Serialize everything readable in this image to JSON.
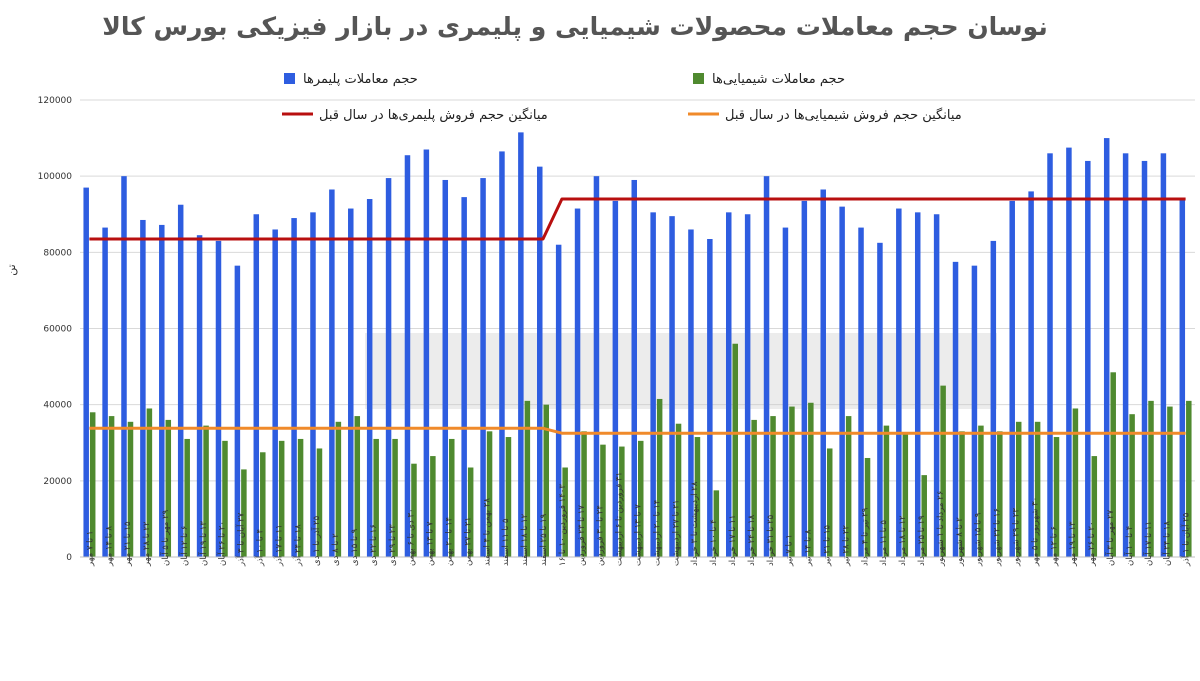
{
  "chart_data": {
    "type": "bar",
    "title": "نوسان حجم معاملات محصولات شیمیایی و پلیمری در بازار فیزیکی بورس کالا",
    "ylabel": "تن",
    "ylim": [
      0,
      120000
    ],
    "yticks": [
      0,
      20000,
      40000,
      60000,
      80000,
      100000,
      120000
    ],
    "grid": true,
    "legend_position": "top",
    "categories": [
      "۱ تا ۷ مهر",
      "۸ تا ۱۴ مهر",
      "۱۵ تا ۲۱ مهر",
      "۲۲ تا ۲۸ مهر",
      "۲۹ مهر تا ۵ آبان",
      "۶ تا ۱۲ آبان",
      "۱۳ تا ۱۹ آبان",
      "۲۰ تا ۲۶ آبان",
      "۲۷ آبان تا ۳ آذر",
      "۴ تا ۱۰ آذر",
      "۱۱ تا ۱۷ آذر",
      "۱۸ تا ۲۴ آذر",
      "۲۵ آذر تا ۱ دی",
      "۲ تا ۸ دی",
      "۹ تا ۱۵ دی",
      "۱۶ تا ۲۲ دی",
      "۲۳ تا ۲۹ دی",
      "۳۰ دی تا ۶ بهمن",
      "۷ تا ۱۳ بهمن",
      "۱۴ تا ۲۰ بهمن",
      "۲۱ تا ۲۷ بهمن",
      "۲۸ بهمن تا ۴ اسفند",
      "۵ تا ۱۱ اسفند",
      "۱۲ تا ۱۸ اسفند",
      "۱۹ تا ۲۵ اسفند",
      "۱۴۰۳ فروردین ۱۰ تا ۱۶",
      "۱۷ تا ۲۳ فروردین",
      "۲۴ تا ۳۰ فروردین",
      "۳۱ فروردین تا ۶ اردیبهشت",
      "۷ تا ۱۳ اردیبهشت",
      "۱۴ تا ۲۰ اردیبهشت",
      "۲۱ تا ۲۷ اردیبهشت",
      "۲۸ اردیبهشت تا ۳ خرداد",
      "۴ تا ۱۰ خرداد",
      "۱۱ تا ۱۷ خرداد",
      "۱۸ تا ۲۴ خرداد",
      "۲۵ تا ۳۱ خرداد",
      "۱ تا ۷ تیر",
      "۸ تا ۱۴ تیر",
      "۱۵ تا ۲۱ تیر",
      "۲۲ تا ۲۸ تیر",
      "۲۹ تیر تا ۴ مرداد",
      "۵ تا ۱۱ مرداد",
      "۱۲ تا ۱۸ مرداد",
      "۱۹ تا ۲۵ مرداد",
      "۲۶ مرداد تا ۱ شهریور",
      "۲ تا ۸ شهریور",
      "۹ تا ۱۵ شهریور",
      "۱۶ تا ۲۲ شهریور",
      "۲۳ تا ۲۹ شهریور",
      "۳۰ شهریور تا ۵ مهر",
      "۶ تا ۱۲ مهر",
      "۱۳ تا ۱۹ مهر",
      "۲۰ تا ۲۶ مهر",
      "۲۷ مهر تا ۳ آبان",
      "۴ تا ۱۰ آبان",
      "۱۱ تا ۱۷ آبان",
      "۱۸ تا ۲۴ آبان",
      "۲۵ آبان تا ۱ آذر"
    ],
    "series": [
      {
        "name": "حجم معاملات پلیمرها",
        "type": "bar",
        "color": "#2e5de0",
        "values": [
          97000,
          86500,
          100000,
          88500,
          87200,
          92500,
          84500,
          83000,
          76500,
          90000,
          86000,
          89000,
          90500,
          96500,
          91500,
          94000,
          99500,
          105500,
          107000,
          99000,
          94500,
          99500,
          106500,
          111500,
          102500,
          82000,
          91500,
          100000,
          93500,
          99000,
          90500,
          89500,
          86000,
          83500,
          90500,
          90000,
          100000,
          86500,
          93500,
          96500,
          92000,
          86500,
          82500,
          91500,
          90500,
          90000,
          77500,
          76500,
          83000,
          93500,
          96000,
          106000,
          107500,
          104000,
          110000,
          106000,
          104000,
          106000,
          94000
        ]
      },
      {
        "name": "حجم معاملات شیمیایی‌ها",
        "type": "bar",
        "color": "#4f8a2f",
        "values": [
          38000,
          37000,
          35500,
          39000,
          36000,
          31000,
          34500,
          30500,
          23000,
          27500,
          30500,
          31000,
          28500,
          35500,
          37000,
          31000,
          31000,
          24500,
          26500,
          31000,
          23500,
          33000,
          31500,
          41000,
          40000,
          23500,
          33000,
          29500,
          29000,
          30500,
          41500,
          35000,
          31500,
          17500,
          56000,
          36000,
          37000,
          39500,
          40500,
          28500,
          37000,
          26000,
          34500,
          32500,
          21500,
          45000,
          33000,
          34500,
          33000,
          35500,
          35500,
          31500,
          39000,
          26500,
          48500,
          37500,
          41000,
          39500,
          41000
        ]
      },
      {
        "name": "میانگین حجم فروش پلیمری‌ها در سال قبل",
        "type": "line",
        "color": "#b80f0f",
        "values": [
          83500,
          83500,
          83500,
          83500,
          83500,
          83500,
          83500,
          83500,
          83500,
          83500,
          83500,
          83500,
          83500,
          83500,
          83500,
          83500,
          83500,
          83500,
          83500,
          83500,
          83500,
          83500,
          83500,
          83500,
          83500,
          94000,
          94000,
          94000,
          94000,
          94000,
          94000,
          94000,
          94000,
          94000,
          94000,
          94000,
          94000,
          94000,
          94000,
          94000,
          94000,
          94000,
          94000,
          94000,
          94000,
          94000,
          94000,
          94000,
          94000,
          94000,
          94000,
          94000,
          94000,
          94000,
          94000,
          94000,
          94000,
          94000,
          94000
        ]
      },
      {
        "name": "میانگین حجم فروش شیمیایی‌ها در سال قبل",
        "type": "line",
        "color": "#f08a2a",
        "values": [
          33800,
          33800,
          33800,
          33800,
          33800,
          33800,
          33800,
          33800,
          33800,
          33800,
          33800,
          33800,
          33800,
          33800,
          33800,
          33800,
          33800,
          33800,
          33800,
          33800,
          33800,
          33800,
          33800,
          33800,
          33800,
          32500,
          32500,
          32500,
          32500,
          32500,
          32500,
          32500,
          32500,
          32500,
          32500,
          32500,
          32500,
          32500,
          32500,
          32500,
          32500,
          32500,
          32500,
          32500,
          32500,
          32500,
          32500,
          32500,
          32500,
          32500,
          32500,
          32500,
          32500,
          32500,
          32500,
          32500,
          32500,
          32500,
          32500
        ]
      }
    ]
  }
}
